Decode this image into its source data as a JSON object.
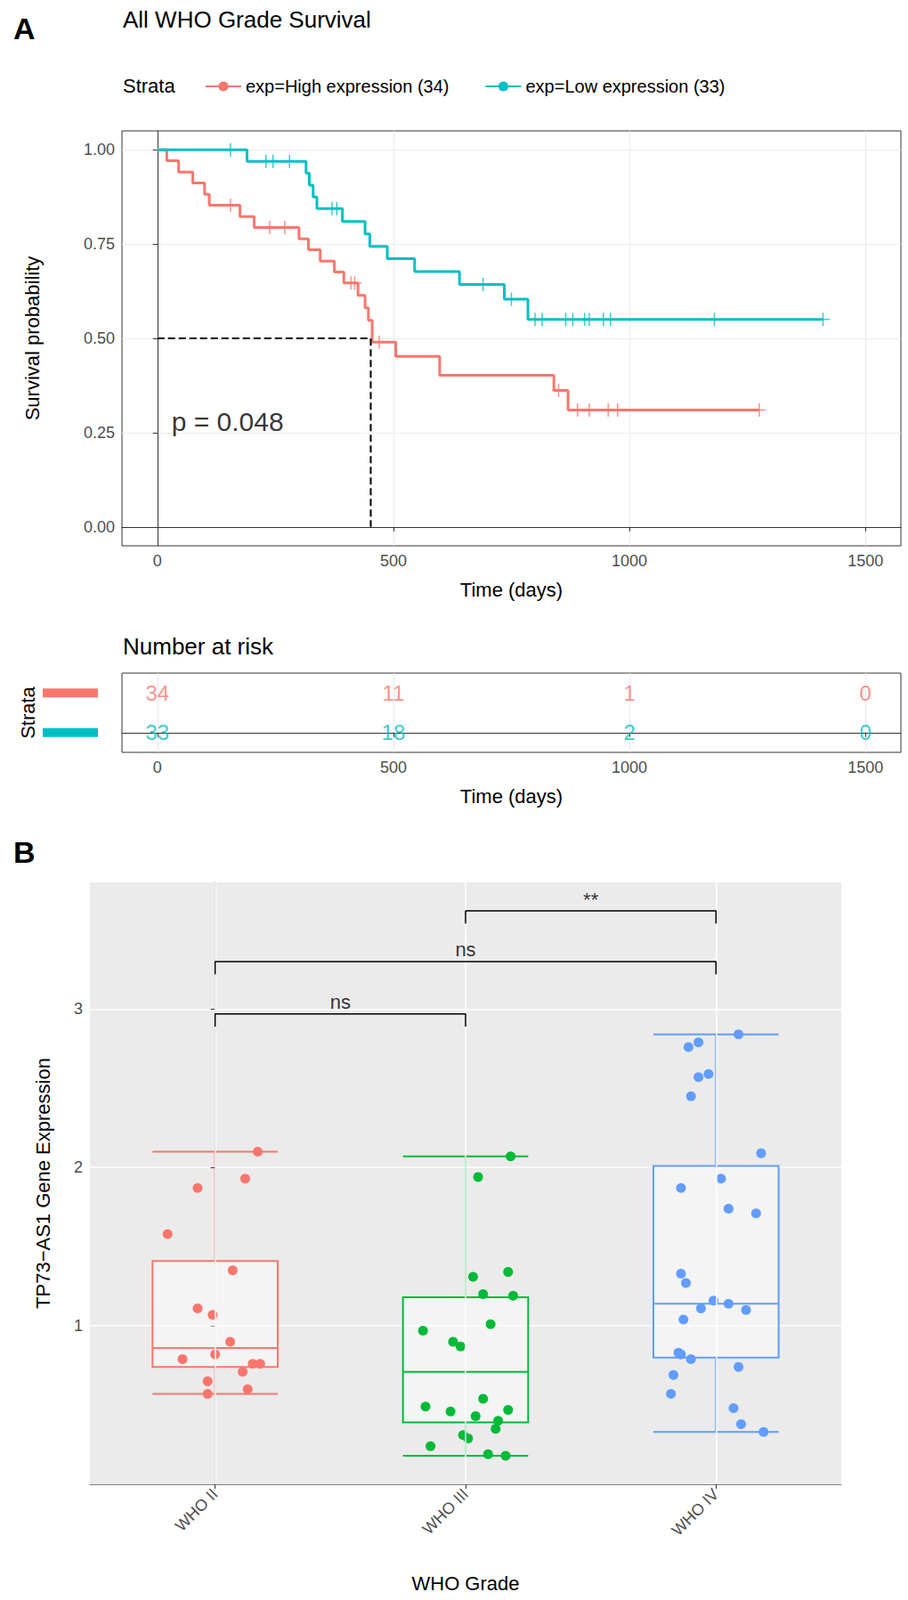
{
  "chart_data": [
    {
      "type": "line",
      "panel": "A",
      "title": "All WHO Grade Survival",
      "legend_title": "Strata",
      "legend": "top",
      "xlabel": "Time (days)",
      "ylabel": "Survival probability",
      "xlim": [
        -75,
        1575
      ],
      "xticks": [
        0,
        500,
        1000,
        1500
      ],
      "ylim": [
        -0.05,
        1.05
      ],
      "yticks": [
        {
          "value": 0,
          "label": "0.00"
        },
        {
          "value": 0.25,
          "label": "0.25"
        },
        {
          "value": 0.5,
          "label": "0.50"
        },
        {
          "value": 0.75,
          "label": "0.75"
        },
        {
          "value": 1,
          "label": "1.00"
        }
      ],
      "grid": true,
      "line_style": "step",
      "series": [
        {
          "name": "exp=High expression (34)",
          "color": "#F8766D",
          "marker": "+",
          "x": [
            0,
            20,
            45,
            75,
            100,
            110,
            175,
            205,
            300,
            320,
            345,
            375,
            395,
            425,
            440,
            447,
            455,
            505,
            598,
            840,
            870,
            1275
          ],
          "values": [
            1,
            0.971,
            0.941,
            0.912,
            0.882,
            0.853,
            0.823,
            0.794,
            0.764,
            0.735,
            0.705,
            0.676,
            0.647,
            0.614,
            0.581,
            0.548,
            0.49,
            0.452,
            0.402,
            0.362,
            0.31,
            0.31
          ],
          "censored_x": [
            155,
            238,
            270,
            410,
            418,
            470,
            850,
            890,
            915,
            955,
            975,
            1275
          ],
          "censored_values": [
            0.853,
            0.794,
            0.794,
            0.647,
            0.647,
            0.49,
            0.362,
            0.31,
            0.31,
            0.31,
            0.31,
            0.31
          ]
        },
        {
          "name": "exp=Low expression (33)",
          "color": "#00BFC4",
          "marker": "+",
          "x": [
            0,
            190,
            315,
            322,
            330,
            338,
            392,
            440,
            450,
            487,
            545,
            640,
            735,
            785,
            1410
          ],
          "values": [
            1,
            0.969,
            0.938,
            0.906,
            0.875,
            0.844,
            0.81,
            0.777,
            0.744,
            0.711,
            0.677,
            0.643,
            0.604,
            0.55,
            0.55
          ],
          "censored_x": [
            155,
            230,
            245,
            280,
            370,
            380,
            690,
            750,
            800,
            815,
            865,
            880,
            905,
            915,
            945,
            960,
            1180,
            1410
          ],
          "censored_values": [
            1,
            0.969,
            0.969,
            0.969,
            0.844,
            0.844,
            0.643,
            0.604,
            0.55,
            0.55,
            0.55,
            0.55,
            0.55,
            0.55,
            0.55,
            0.55,
            0.55,
            0.55
          ]
        }
      ],
      "median_line": {
        "x": [
          0,
          452,
          452
        ],
        "y": [
          0.5,
          0.5,
          0
        ],
        "line_style": "dashed"
      },
      "annotation": {
        "text": "p = 0.048",
        "x": 30,
        "y": 0.28
      },
      "risk_table": {
        "title": "Number at risk",
        "ylabel": "Strata",
        "xlabel": "Time (days)",
        "x": [
          0,
          500,
          1000,
          1500
        ],
        "xlim": [
          -75,
          1575
        ],
        "xticks": [
          0,
          500,
          1000,
          1500
        ],
        "rows": [
          {
            "color": "#F8766D",
            "values": [
              34,
              11,
              1,
              0
            ]
          },
          {
            "color": "#00BFC4",
            "values": [
              33,
              18,
              2,
              0
            ]
          }
        ]
      }
    },
    {
      "type": "boxplot",
      "panel": "B",
      "xlabel": "WHO Grade",
      "ylabel": "TP73−AS1 Gene Expression",
      "categories": [
        "WHO II",
        "WHO III",
        "WHO IV"
      ],
      "ylim": [
        0,
        3.8
      ],
      "yticks": [
        1,
        2,
        3
      ],
      "grid": true,
      "groups": [
        {
          "category": "WHO II",
          "color": "#F8766D",
          "min": 0.57,
          "q1": 0.74,
          "median": 0.86,
          "q3": 1.41,
          "max": 2.1,
          "points_x": [
            0.17,
            0.12,
            -0.07,
            -0.19,
            0.07,
            -0.07,
            -0.01,
            0.06,
            0.0,
            -0.13,
            0.18,
            0.15,
            0.11,
            -0.03,
            0.13,
            -0.03
          ],
          "points": [
            2.1,
            1.93,
            1.87,
            1.58,
            1.35,
            1.11,
            1.07,
            0.9,
            0.82,
            0.79,
            0.76,
            0.76,
            0.71,
            0.65,
            0.6,
            0.57
          ]
        },
        {
          "category": "WHO III",
          "color": "#00BA38",
          "min": 0.18,
          "q1": 0.39,
          "median": 0.71,
          "q3": 1.18,
          "max": 2.07,
          "points_x": [
            1.18,
            1.05,
            1.03,
            1.17,
            1.07,
            1.19,
            1.1,
            0.83,
            0.95,
            0.98,
            1.07,
            0.84,
            0.94,
            1.17,
            1.04,
            1.13,
            1.12,
            0.99,
            1.01,
            0.86,
            1.09,
            1.16
          ],
          "points": [
            2.07,
            1.94,
            1.31,
            1.34,
            1.2,
            1.19,
            1.01,
            0.97,
            0.9,
            0.87,
            0.54,
            0.49,
            0.46,
            0.47,
            0.43,
            0.4,
            0.35,
            0.31,
            0.29,
            0.24,
            0.19,
            0.18
          ]
        },
        {
          "category": "WHO IV",
          "color": "#619CFF",
          "min": 0.33,
          "q1": 0.8,
          "median": 1.14,
          "q3": 2.01,
          "max": 2.84,
          "points_x": [
            2.09,
            1.93,
            1.89,
            1.97,
            1.93,
            1.9,
            2.18,
            2.02,
            1.86,
            2.05,
            2.16,
            1.86,
            1.88,
            1.99,
            2.05,
            1.94,
            2.12,
            1.87,
            1.85,
            1.86,
            1.9,
            2.09,
            1.83,
            1.82,
            2.07,
            2.1,
            2.19
          ],
          "points": [
            2.84,
            2.79,
            2.76,
            2.59,
            2.57,
            2.45,
            2.09,
            1.93,
            1.87,
            1.74,
            1.71,
            1.33,
            1.27,
            1.16,
            1.14,
            1.11,
            1.1,
            1.04,
            0.83,
            0.82,
            0.79,
            0.74,
            0.69,
            0.57,
            0.48,
            0.38,
            0.33
          ]
        }
      ],
      "comparisons": [
        {
          "from": "WHO III",
          "to": "WHO IV",
          "y": 3.62,
          "label": "**"
        },
        {
          "from": "WHO II",
          "to": "WHO IV",
          "y": 3.3,
          "label": "ns"
        },
        {
          "from": "WHO II",
          "to": "WHO III",
          "y": 2.97,
          "label": "ns"
        }
      ]
    }
  ]
}
